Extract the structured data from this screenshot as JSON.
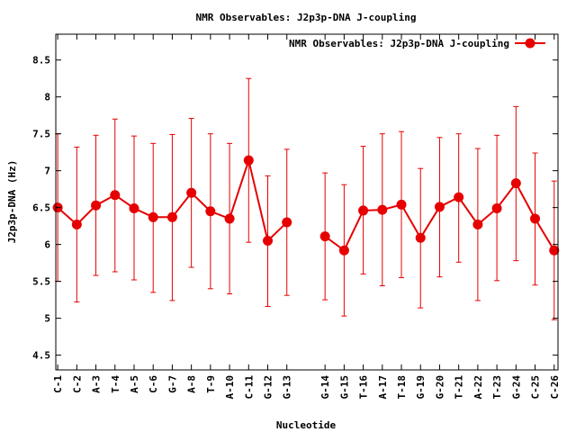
{
  "chart_data": {
    "type": "line",
    "title": "NMR Observables: J2p3p-DNA J-coupling",
    "xlabel": "Nucleotide",
    "ylabel": "J2p3p-DNA (Hz)",
    "ylim": [
      4.3,
      8.85
    ],
    "yticks": [
      "4.5",
      "5",
      "5.5",
      "6",
      "6.5",
      "7",
      "7.5",
      "8",
      "8.5"
    ],
    "legend_position": "top-right",
    "color": "#e60000",
    "series": [
      {
        "name": "NMR Observables: J2p3p-DNA J-coupling",
        "categories": [
          "C-1",
          "C-2",
          "A-3",
          "T-4",
          "A-5",
          "C-6",
          "G-7",
          "A-8",
          "T-9",
          "A-10",
          "C-11",
          "G-12",
          "G-13",
          "G-14",
          "G-15",
          "T-16",
          "A-17",
          "T-18",
          "G-19",
          "G-20",
          "T-21",
          "A-22",
          "T-23",
          "G-24",
          "C-25",
          "C-26"
        ],
        "x": [
          1,
          2,
          3,
          4,
          5,
          6,
          7,
          8,
          9,
          10,
          11,
          12,
          13,
          15,
          16,
          17,
          18,
          19,
          20,
          21,
          22,
          23,
          24,
          25,
          26,
          27
        ],
        "values": [
          6.5,
          6.27,
          6.53,
          6.67,
          6.49,
          6.37,
          6.37,
          6.7,
          6.45,
          6.35,
          7.14,
          6.05,
          6.3,
          6.11,
          5.92,
          6.46,
          6.47,
          6.54,
          6.09,
          6.51,
          6.64,
          6.27,
          6.49,
          6.83,
          6.35,
          5.92
        ],
        "err_low": [
          5.5,
          5.22,
          5.58,
          5.63,
          5.52,
          5.35,
          5.24,
          5.69,
          5.4,
          5.33,
          6.03,
          5.16,
          5.31,
          5.25,
          5.03,
          5.6,
          5.44,
          5.55,
          5.14,
          5.56,
          5.76,
          5.24,
          5.51,
          5.78,
          5.45,
          4.98
        ],
        "err_high": [
          7.5,
          7.32,
          7.48,
          7.7,
          7.47,
          7.37,
          7.49,
          7.71,
          7.5,
          7.37,
          8.25,
          6.93,
          7.29,
          6.97,
          6.81,
          7.33,
          7.5,
          7.53,
          7.03,
          7.45,
          7.5,
          7.3,
          7.48,
          7.87,
          7.24,
          6.86
        ],
        "segments": [
          [
            0,
            12
          ],
          [
            13,
            25
          ]
        ]
      }
    ]
  }
}
